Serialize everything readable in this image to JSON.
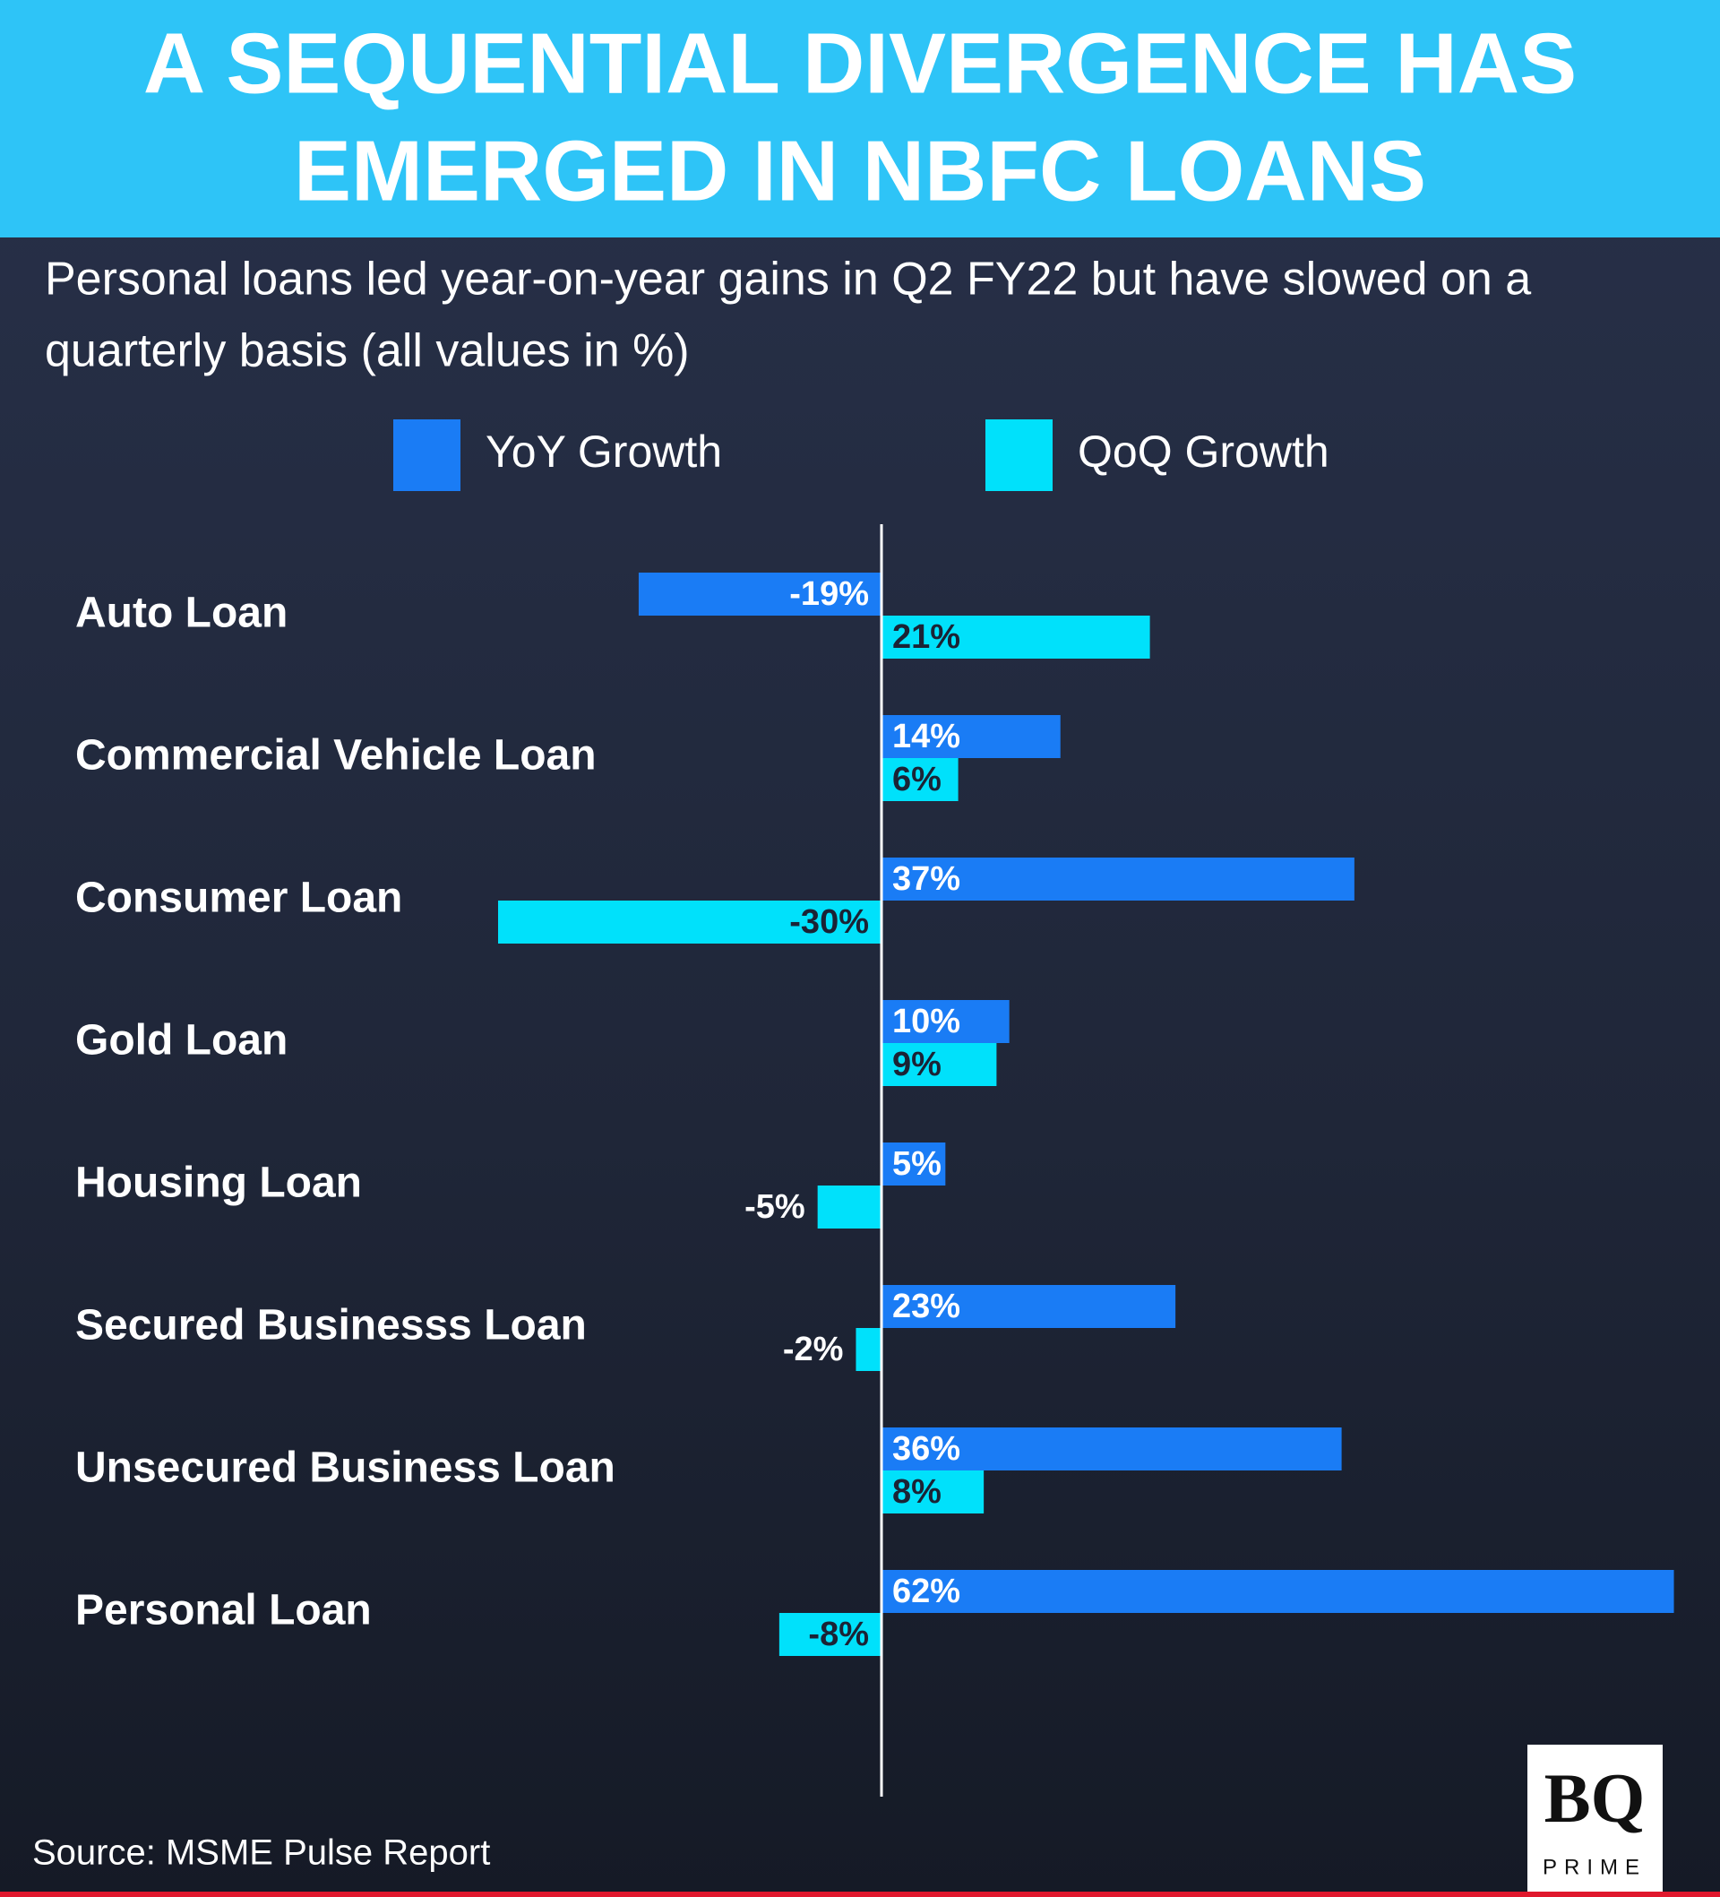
{
  "chart_data": {
    "type": "hbar",
    "title_lines": [
      "A SEQUENTIAL DIVERGENCE HAS",
      "EMERGED IN NBFC LOANS"
    ],
    "subtitle_lines": [
      "Personal loans led year-on-year gains in Q2 FY22 but have slowed on a",
      "quarterly basis (all values in %)"
    ],
    "categories": [
      "Auto Loan",
      "Commercial Vehicle Loan",
      "Consumer Loan",
      "Gold Loan",
      "Housing Loan",
      "Secured Businesss Loan",
      "Unsecured Business Loan",
      "Personal Loan"
    ],
    "series": [
      {
        "name": "YoY Growth",
        "color": "#1a7cf5",
        "label_color": "#ffffff",
        "values": [
          -19,
          14,
          37,
          10,
          5,
          23,
          36,
          62
        ],
        "value_labels": [
          "-19%",
          "14%",
          "37%",
          "10%",
          "5%",
          "23%",
          "36%",
          "62%"
        ]
      },
      {
        "name": "QoQ Growth",
        "color": "#00e1fb",
        "label_color": "#1b2335",
        "values": [
          21,
          6,
          -30,
          9,
          -5,
          -2,
          8,
          -8
        ],
        "value_labels": [
          "21%",
          "6%",
          "-30%",
          "9%",
          "-5%",
          "-2%",
          "8%",
          "-8%"
        ]
      }
    ],
    "source": "Source: MSME Pulse Report"
  },
  "logo": {
    "name": "BQ",
    "tagline": "PRIME"
  }
}
